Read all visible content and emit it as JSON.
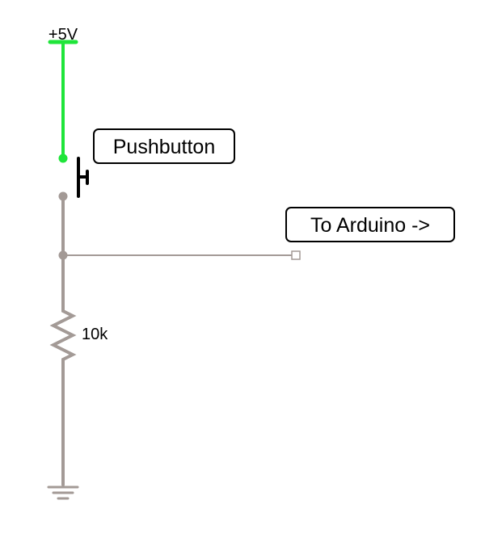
{
  "schematic": {
    "supply_label": "+5V",
    "pushbutton_label": "Pushbutton",
    "output_label": "To Arduino ->",
    "resistor_label": "10k"
  },
  "colors": {
    "powered_wire": "#1fe53a",
    "wire": "#a39a96",
    "component": "#000000",
    "background": "#ffffff"
  }
}
